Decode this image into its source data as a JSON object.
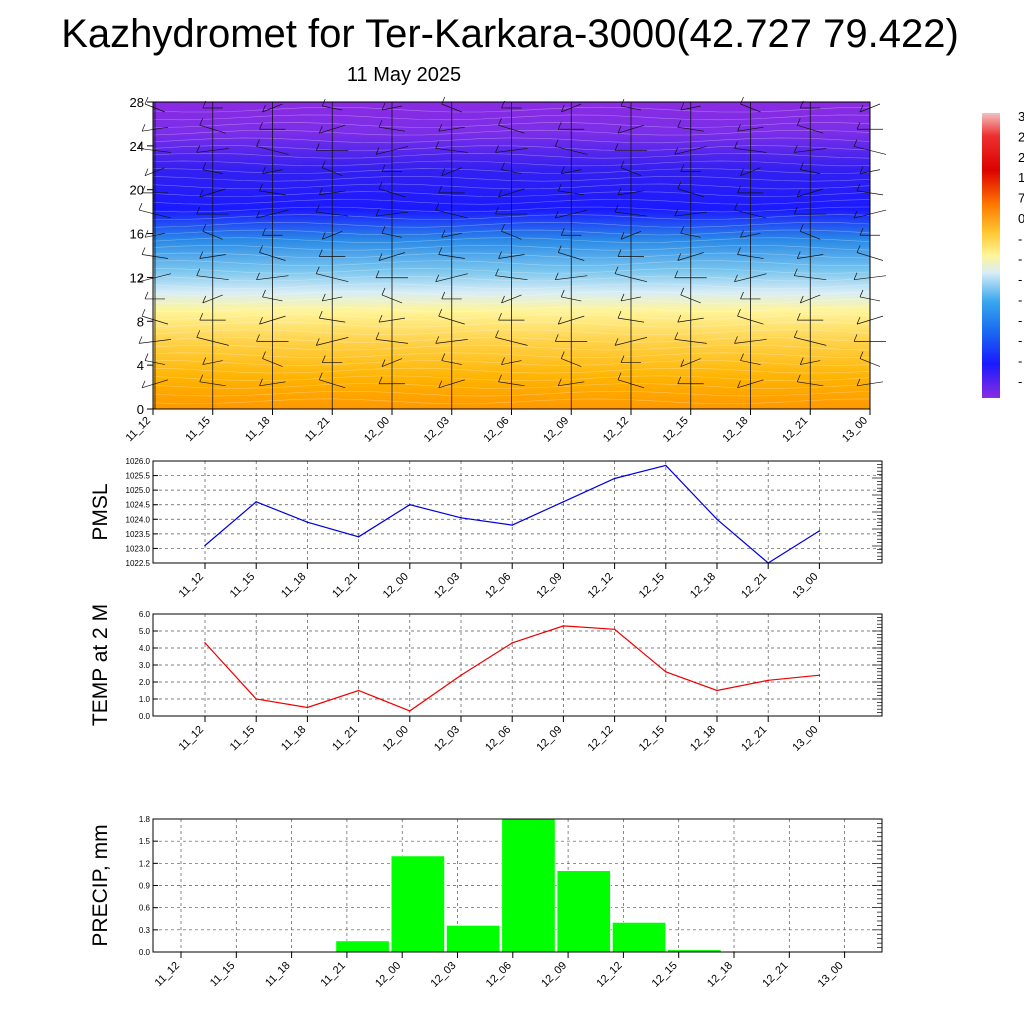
{
  "title": "Kazhydromet for Ter-Karkara-3000(42.727 79.422)",
  "subtitle": "11 May 2025",
  "chart_data": [
    {
      "type": "heatmap",
      "y_ticks": [
        "0",
        "4",
        "8",
        "12",
        "16",
        "20",
        "24",
        "28"
      ],
      "ylim": [
        0,
        28
      ],
      "x_ticks": [
        "11_12",
        "11_15",
        "11_18",
        "11_21",
        "12_00",
        "12_03",
        "12_06",
        "12_09",
        "12_12",
        "12_15",
        "12_18",
        "12_21",
        "13_00"
      ],
      "colorbar_labels": [
        "3",
        "2",
        "2",
        "1",
        "7",
        "0",
        "-",
        "-",
        "-",
        "-",
        "-",
        "-",
        "-",
        "-"
      ],
      "colors": [
        "#8a2be2",
        "#1a1aff",
        "#2b9be8",
        "#cfe9f7",
        "#fff59a",
        "#ffb300",
        "#ff8c00"
      ]
    },
    {
      "type": "line",
      "ylabel": "PMSL",
      "x": [
        "11_12",
        "11_15",
        "11_18",
        "11_21",
        "12_00",
        "12_03",
        "12_06",
        "12_09",
        "12_12",
        "12_15",
        "12_18",
        "12_21",
        "13_00"
      ],
      "series": [
        {
          "values": [
            1023.1,
            1024.6,
            1023.9,
            1023.4,
            1024.5,
            1024.05,
            1023.8,
            1024.6,
            1025.4,
            1025.85,
            1024.0,
            1022.5,
            1023.6
          ]
        }
      ],
      "ylim": [
        1022.5,
        1026.0
      ],
      "y_ticks": [
        "1022.5",
        "1023.0",
        "1023.5",
        "1024.0",
        "1024.5",
        "1025.0",
        "1025.5",
        "1026.0"
      ],
      "color": "#0000dd"
    },
    {
      "type": "line",
      "ylabel": "TEMP at 2 M",
      "x": [
        "11_12",
        "11_15",
        "11_18",
        "11_21",
        "12_00",
        "12_03",
        "12_06",
        "12_09",
        "12_12",
        "12_15",
        "12_18",
        "12_21",
        "13_00"
      ],
      "series": [
        {
          "values": [
            4.3,
            1.0,
            0.5,
            1.5,
            0.3,
            2.4,
            4.3,
            5.3,
            5.1,
            2.6,
            1.5,
            2.1,
            2.4
          ]
        }
      ],
      "ylim": [
        0,
        6
      ],
      "y_ticks": [
        "0.0",
        "1.0",
        "2.0",
        "3.0",
        "4.0",
        "5.0",
        "6.0"
      ],
      "color": "#ee0000"
    },
    {
      "type": "bar",
      "ylabel": "PRECIP, mm",
      "categories": [
        "11_12",
        "11_15",
        "11_18",
        "11_21",
        "12_00",
        "12_03",
        "12_06",
        "12_09",
        "12_12",
        "12_15",
        "12_18",
        "12_21",
        "13_00"
      ],
      "values": [
        0,
        0,
        0,
        0.15,
        1.3,
        0.36,
        1.8,
        1.1,
        0.4,
        0.03,
        0,
        0,
        0
      ],
      "ylim": [
        0,
        1.8
      ],
      "y_ticks": [
        "0.0",
        "0.3",
        "0.6",
        "0.9",
        "1.2",
        "1.5",
        "1.8"
      ],
      "color": "#00ff00"
    }
  ]
}
